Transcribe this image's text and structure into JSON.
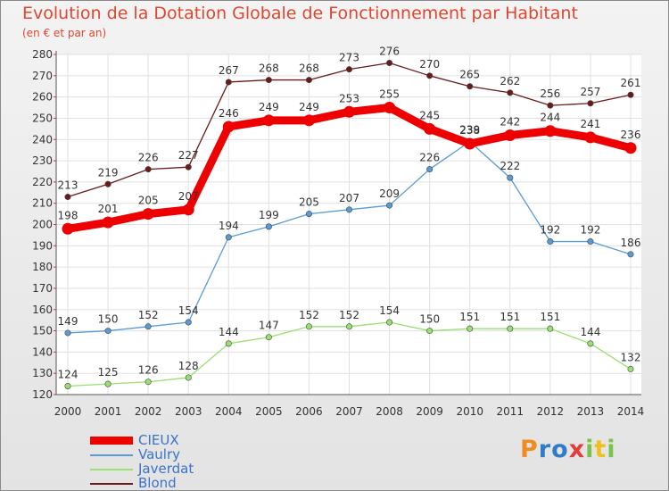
{
  "title": "Evolution de la Dotation Globale de Fonctionnement par Habitant",
  "subtitle": "(en € et par an)",
  "logo": {
    "text": "Proxiti",
    "letters": [
      "P",
      "r",
      "o",
      "x",
      "i",
      "t",
      "i"
    ],
    "letter_colors": [
      "#f08c1e",
      "#2f7cc9",
      "#2f7cc9",
      "#e43b3b",
      "#7cc24a",
      "#f0c01e",
      "#7cc24a"
    ]
  },
  "chart_data": {
    "type": "line",
    "x": [
      "2000",
      "2001",
      "2002",
      "2003",
      "2004",
      "2005",
      "2006",
      "2007",
      "2008",
      "2009",
      "2010",
      "2011",
      "2012",
      "2013",
      "2014"
    ],
    "ylim": [
      120,
      280
    ],
    "yticks": [
      "120",
      "130",
      "140",
      "150",
      "160",
      "170",
      "180",
      "190",
      "200",
      "210",
      "220",
      "230",
      "240",
      "250",
      "260",
      "270",
      "280"
    ],
    "grid": true,
    "legend_position": "bottom-left",
    "series": [
      {
        "name": "Blond",
        "color": "#6b1a1a",
        "values": [
          213,
          219,
          226,
          227,
          267,
          268,
          268,
          273,
          276,
          270,
          265,
          262,
          256,
          257,
          261
        ]
      },
      {
        "name": "Vaulry",
        "color": "#5a9bd5",
        "values": [
          149,
          150,
          152,
          154,
          194,
          199,
          205,
          207,
          209,
          226,
          239,
          222,
          192,
          192,
          186
        ]
      },
      {
        "name": "Javerdat",
        "color": "#98e070",
        "values": [
          124,
          125,
          126,
          128,
          144,
          147,
          152,
          152,
          154,
          150,
          151,
          151,
          151,
          144,
          132
        ]
      },
      {
        "name": "CIEUX",
        "color": "#ee0000",
        "values": [
          198,
          201,
          205,
          207,
          246,
          249,
          249,
          253,
          255,
          245,
          238,
          242,
          244,
          241,
          236
        ]
      }
    ],
    "legend": [
      {
        "name": "CIEUX",
        "color": "#ee0000"
      },
      {
        "name": "Vaulry",
        "color": "#5a9bd5"
      },
      {
        "name": "Javerdat",
        "color": "#98e070"
      },
      {
        "name": "Blond",
        "color": "#6b1a1a"
      }
    ]
  }
}
